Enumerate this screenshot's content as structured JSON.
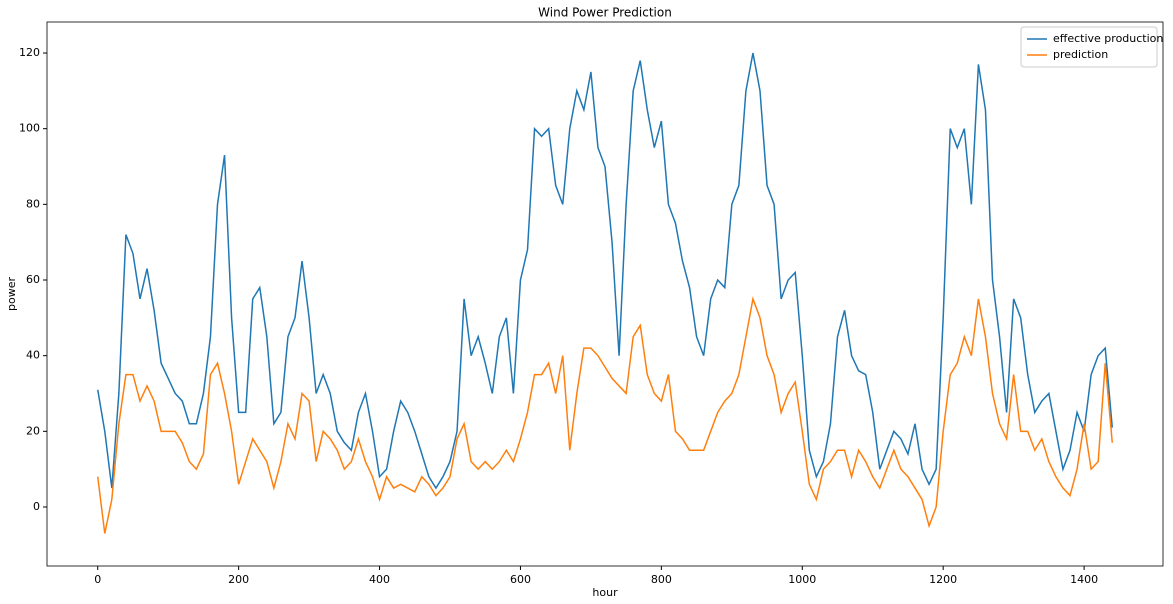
{
  "chart_data": {
    "type": "line",
    "title": "Wind Power Prediction",
    "x_label": "hour",
    "y_label": "power",
    "x": [
      0,
      10,
      20,
      30,
      40,
      50,
      60,
      70,
      80,
      90,
      100,
      110,
      120,
      130,
      140,
      150,
      160,
      170,
      180,
      190,
      200,
      210,
      220,
      230,
      240,
      250,
      260,
      270,
      280,
      290,
      300,
      310,
      320,
      330,
      340,
      350,
      360,
      370,
      380,
      390,
      400,
      410,
      420,
      430,
      440,
      450,
      460,
      470,
      480,
      490,
      500,
      510,
      520,
      530,
      540,
      550,
      560,
      570,
      580,
      590,
      600,
      610,
      620,
      630,
      640,
      650,
      660,
      670,
      680,
      690,
      700,
      710,
      720,
      730,
      740,
      750,
      760,
      770,
      780,
      790,
      800,
      810,
      820,
      830,
      840,
      850,
      860,
      870,
      880,
      890,
      900,
      910,
      920,
      930,
      940,
      950,
      960,
      970,
      980,
      990,
      1000,
      1010,
      1020,
      1030,
      1040,
      1050,
      1060,
      1070,
      1080,
      1090,
      1100,
      1110,
      1120,
      1130,
      1140,
      1150,
      1160,
      1170,
      1180,
      1190,
      1200,
      1210,
      1220,
      1230,
      1240,
      1250,
      1260,
      1270,
      1280,
      1290,
      1300,
      1310,
      1320,
      1330,
      1340,
      1350,
      1360,
      1370,
      1380,
      1390,
      1400,
      1410,
      1420,
      1430,
      1440
    ],
    "series": [
      {
        "name": "effective production",
        "color": "#1f77b4",
        "values": [
          31,
          20,
          5,
          30,
          72,
          67,
          55,
          63,
          52,
          38,
          34,
          30,
          28,
          22,
          22,
          30,
          45,
          80,
          93,
          50,
          25,
          25,
          55,
          58,
          45,
          22,
          25,
          45,
          50,
          65,
          50,
          30,
          35,
          30,
          20,
          17,
          15,
          25,
          30,
          20,
          8,
          10,
          20,
          28,
          25,
          20,
          14,
          8,
          5,
          8,
          12,
          20,
          55,
          40,
          45,
          38,
          30,
          45,
          50,
          30,
          60,
          68,
          100,
          98,
          100,
          85,
          80,
          100,
          110,
          105,
          115,
          95,
          90,
          70,
          40,
          80,
          110,
          118,
          105,
          95,
          102,
          80,
          75,
          65,
          58,
          45,
          40,
          55,
          60,
          58,
          80,
          85,
          110,
          120,
          110,
          85,
          80,
          55,
          60,
          62,
          40,
          15,
          8,
          12,
          22,
          45,
          52,
          40,
          36,
          35,
          25,
          10,
          15,
          20,
          18,
          14,
          22,
          10,
          6,
          10,
          50,
          100,
          95,
          100,
          80,
          117,
          105,
          60,
          45,
          25,
          55,
          50,
          35,
          25,
          28,
          30,
          20,
          10,
          15,
          25,
          20,
          35,
          40,
          42,
          21
        ]
      },
      {
        "name": "prediction",
        "color": "#ff7f0e",
        "values": [
          8,
          -7,
          2,
          22,
          35,
          35,
          28,
          32,
          28,
          20,
          20,
          20,
          17,
          12,
          10,
          14,
          35,
          38,
          30,
          20,
          6,
          12,
          18,
          15,
          12,
          5,
          12,
          22,
          18,
          30,
          28,
          12,
          20,
          18,
          15,
          10,
          12,
          18,
          12,
          8,
          2,
          8,
          5,
          6,
          5,
          4,
          8,
          6,
          3,
          5,
          8,
          18,
          22,
          12,
          10,
          12,
          10,
          12,
          15,
          12,
          18,
          25,
          35,
          35,
          38,
          30,
          40,
          15,
          30,
          42,
          42,
          40,
          37,
          34,
          32,
          30,
          45,
          48,
          35,
          30,
          28,
          35,
          20,
          18,
          15,
          15,
          15,
          20,
          25,
          28,
          30,
          35,
          45,
          55,
          50,
          40,
          35,
          25,
          30,
          33,
          20,
          6,
          2,
          10,
          12,
          15,
          15,
          8,
          15,
          12,
          8,
          5,
          10,
          15,
          10,
          8,
          5,
          2,
          -5,
          0,
          20,
          35,
          38,
          45,
          40,
          55,
          45,
          30,
          22,
          18,
          35,
          20,
          20,
          15,
          18,
          12,
          8,
          5,
          3,
          10,
          22,
          10,
          12,
          38,
          17
        ]
      }
    ],
    "xlim": [
      -72,
      1512
    ],
    "ylim": [
      -15.6,
      128.2
    ],
    "xticks": [
      0,
      200,
      400,
      600,
      800,
      1000,
      1200,
      1400
    ],
    "yticks": [
      0,
      20,
      40,
      60,
      80,
      100,
      120
    ],
    "legend": "upper right"
  }
}
